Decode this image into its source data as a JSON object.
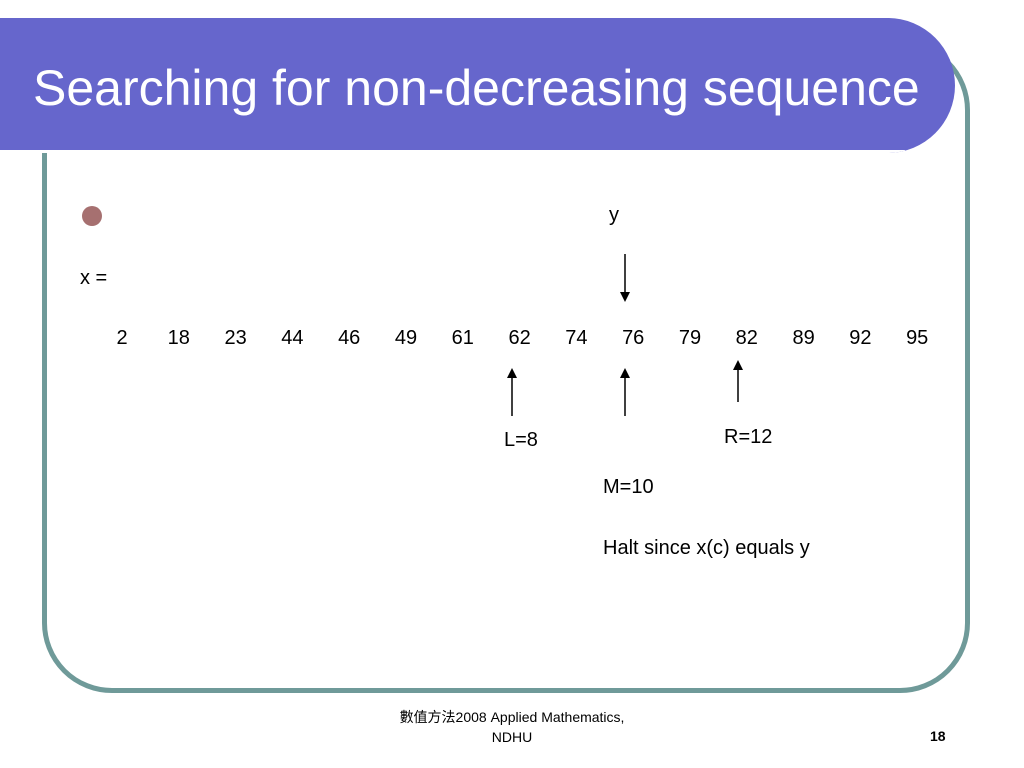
{
  "slide": {
    "title": "Searching for non-decreasing sequence",
    "y_label": "y",
    "x_label": "x =",
    "sequence": [
      "2",
      "18",
      "23",
      "44",
      "46",
      "49",
      "61",
      "62",
      "74",
      "76",
      "79",
      "82",
      "89",
      "92",
      "95"
    ],
    "left_marker": "L=8",
    "right_marker": "R=12",
    "mid_marker": "M=10",
    "halt_text": "Halt since x(c) equals y"
  },
  "footer": {
    "line1": "數值方法2008 Applied Mathematics,",
    "line2": "NDHU",
    "page_number": "18"
  },
  "colors": {
    "title_bar": "#6666cc",
    "frame": "#6f9a99",
    "bullet": "#a67070"
  }
}
